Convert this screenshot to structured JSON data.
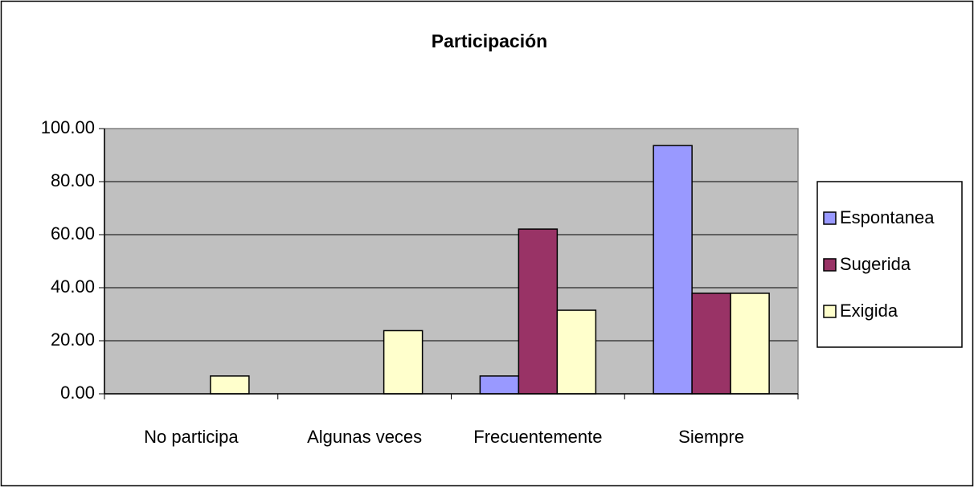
{
  "chart_data": {
    "type": "bar",
    "title": "Participación",
    "categories": [
      "No participa",
      "Algunas veces",
      "Frecuentemente",
      "Siempre"
    ],
    "series": [
      {
        "name": "Espontanea",
        "color": "#9999ff",
        "values": [
          0,
          0,
          6.7,
          93.6
        ]
      },
      {
        "name": "Sugerida",
        "color": "#993366",
        "values": [
          0,
          0,
          62.1,
          37.9
        ]
      },
      {
        "name": "Exigida",
        "color": "#ffffcc",
        "values": [
          6.7,
          23.8,
          31.5,
          37.9
        ]
      }
    ],
    "ylim": [
      0,
      100
    ],
    "yticks": [
      {
        "value": 0,
        "label": "0.00"
      },
      {
        "value": 20,
        "label": "20.00"
      },
      {
        "value": 40,
        "label": "40.00"
      },
      {
        "value": 60,
        "label": "60.00"
      },
      {
        "value": 80,
        "label": "80.00"
      },
      {
        "value": 100,
        "label": "100.00"
      }
    ],
    "grid": true,
    "legend": "right",
    "plot_background": "#c0c0c0"
  }
}
